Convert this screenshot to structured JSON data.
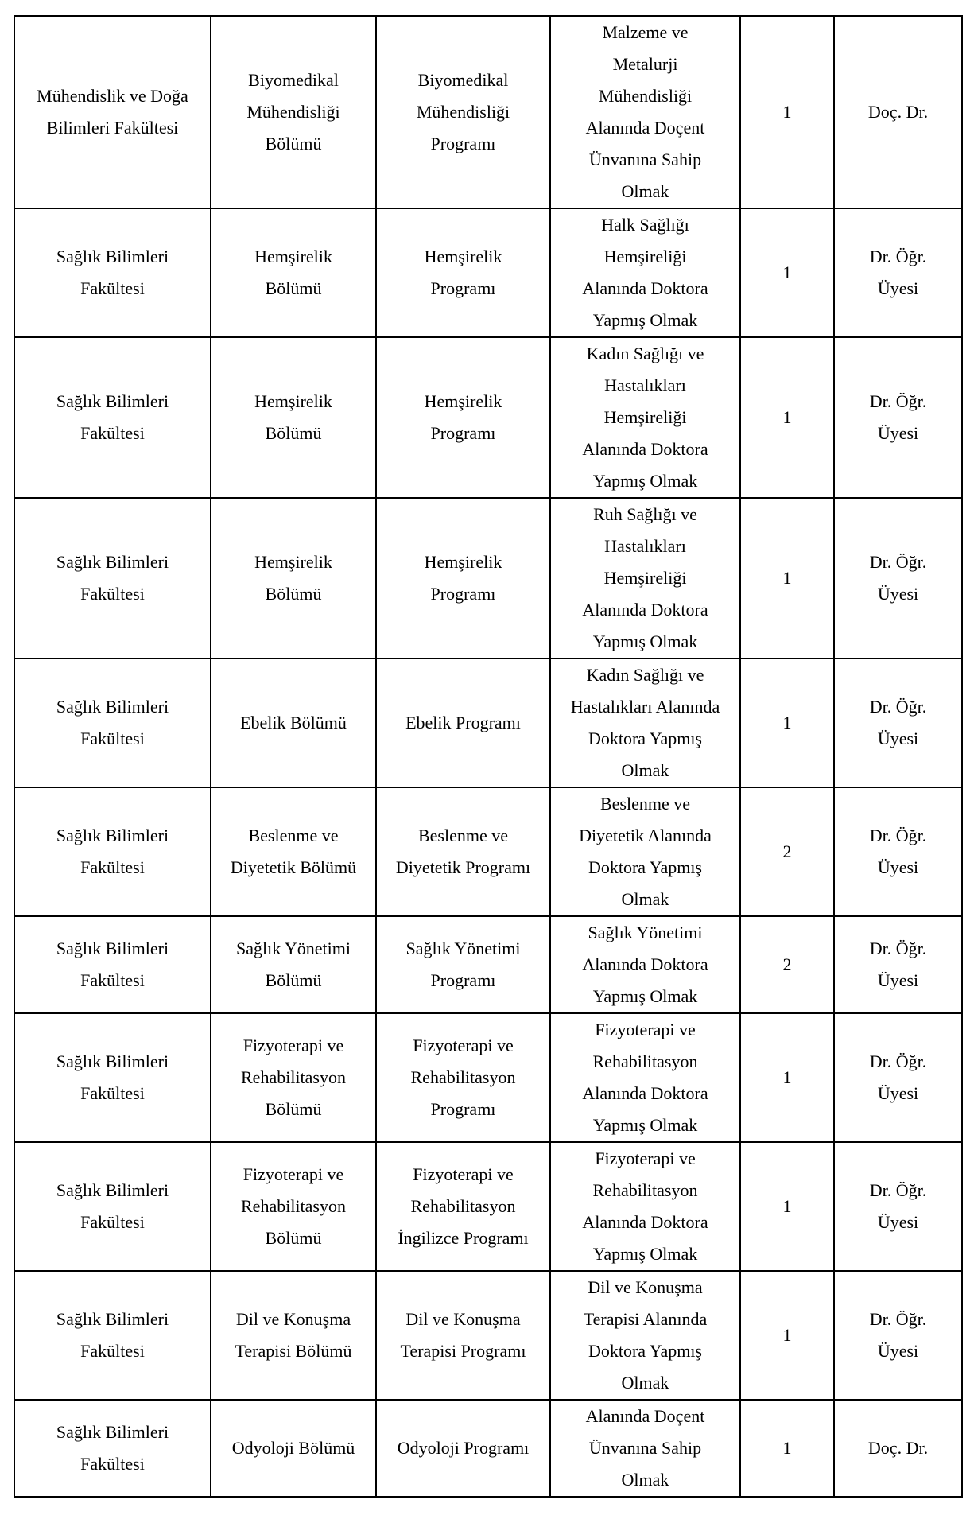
{
  "rows": [
    {
      "faculty": "Mühendislik ve Doğa\nBilimleri Fakültesi",
      "department": "Biyomedikal\nMühendisliği\nBölümü",
      "program": "Biyomedikal\nMühendisliği\nProgramı",
      "requirement": "Malzeme ve\nMetalurji\nMühendisliği\nAlanında Doçent\nÜnvanına Sahip\nOlmak",
      "count": "1",
      "title": "Doç. Dr."
    },
    {
      "faculty": "Sağlık Bilimleri\nFakültesi",
      "department": "Hemşirelik\nBölümü",
      "program": "Hemşirelik\nProgramı",
      "requirement": "Halk Sağlığı\nHemşireliği\nAlanında Doktora\nYapmış Olmak",
      "count": "1",
      "title": "Dr. Öğr.\nÜyesi"
    },
    {
      "faculty": "Sağlık Bilimleri\nFakültesi",
      "department": "Hemşirelik\nBölümü",
      "program": "Hemşirelik\nProgramı",
      "requirement": "Kadın Sağlığı ve\nHastalıkları\nHemşireliği\nAlanında Doktora\nYapmış Olmak",
      "count": "1",
      "title": "Dr. Öğr.\nÜyesi"
    },
    {
      "faculty": "Sağlık Bilimleri\nFakültesi",
      "department": "Hemşirelik\nBölümü",
      "program": "Hemşirelik\nProgramı",
      "requirement": "Ruh Sağlığı ve\nHastalıkları\nHemşireliği\nAlanında Doktora\nYapmış Olmak",
      "count": "1",
      "title": "Dr. Öğr.\nÜyesi"
    },
    {
      "faculty": "Sağlık Bilimleri\nFakültesi",
      "department": "Ebelik Bölümü",
      "program": "Ebelik Programı",
      "requirement": "Kadın Sağlığı ve\nHastalıkları Alanında\nDoktora Yapmış\nOlmak",
      "count": "1",
      "title": "Dr. Öğr.\nÜyesi"
    },
    {
      "faculty": "Sağlık Bilimleri\nFakültesi",
      "department": "Beslenme ve\nDiyetetik Bölümü",
      "program": "Beslenme ve\nDiyetetik Programı",
      "requirement": "Beslenme ve\nDiyetetik Alanında\nDoktora Yapmış\nOlmak",
      "count": "2",
      "title": "Dr. Öğr.\nÜyesi"
    },
    {
      "faculty": "Sağlık Bilimleri\nFakültesi",
      "department": "Sağlık Yönetimi\nBölümü",
      "program": "Sağlık Yönetimi\nProgramı",
      "requirement": "Sağlık Yönetimi\nAlanında Doktora\nYapmış Olmak",
      "count": "2",
      "title": "Dr. Öğr.\nÜyesi"
    },
    {
      "faculty": "Sağlık Bilimleri\nFakültesi",
      "department": "Fizyoterapi ve\nRehabilitasyon\nBölümü",
      "program": "Fizyoterapi ve\nRehabilitasyon\nProgramı",
      "requirement": "Fizyoterapi ve\nRehabilitasyon\nAlanında Doktora\nYapmış Olmak",
      "count": "1",
      "title": "Dr. Öğr.\nÜyesi"
    },
    {
      "faculty": "Sağlık Bilimleri\nFakültesi",
      "department": "Fizyoterapi ve\nRehabilitasyon\nBölümü",
      "program": "Fizyoterapi ve\nRehabilitasyon\nİngilizce Programı",
      "requirement": "Fizyoterapi ve\nRehabilitasyon\nAlanında Doktora\nYapmış Olmak",
      "count": "1",
      "title": "Dr. Öğr.\nÜyesi"
    },
    {
      "faculty": "Sağlık Bilimleri\nFakültesi",
      "department": "Dil ve Konuşma\nTerapisi Bölümü",
      "program": "Dil ve Konuşma\nTerapisi Programı",
      "requirement": "Dil ve Konuşma\nTerapisi Alanında\nDoktora Yapmış\nOlmak",
      "count": "1",
      "title": "Dr. Öğr.\nÜyesi"
    },
    {
      "faculty": "Sağlık Bilimleri\nFakültesi",
      "department": "Odyoloji Bölümü",
      "program": "Odyoloji Programı",
      "requirement": "Alanında Doçent\nÜnvanına Sahip\nOlmak",
      "count": "1",
      "title": "Doç. Dr."
    }
  ]
}
